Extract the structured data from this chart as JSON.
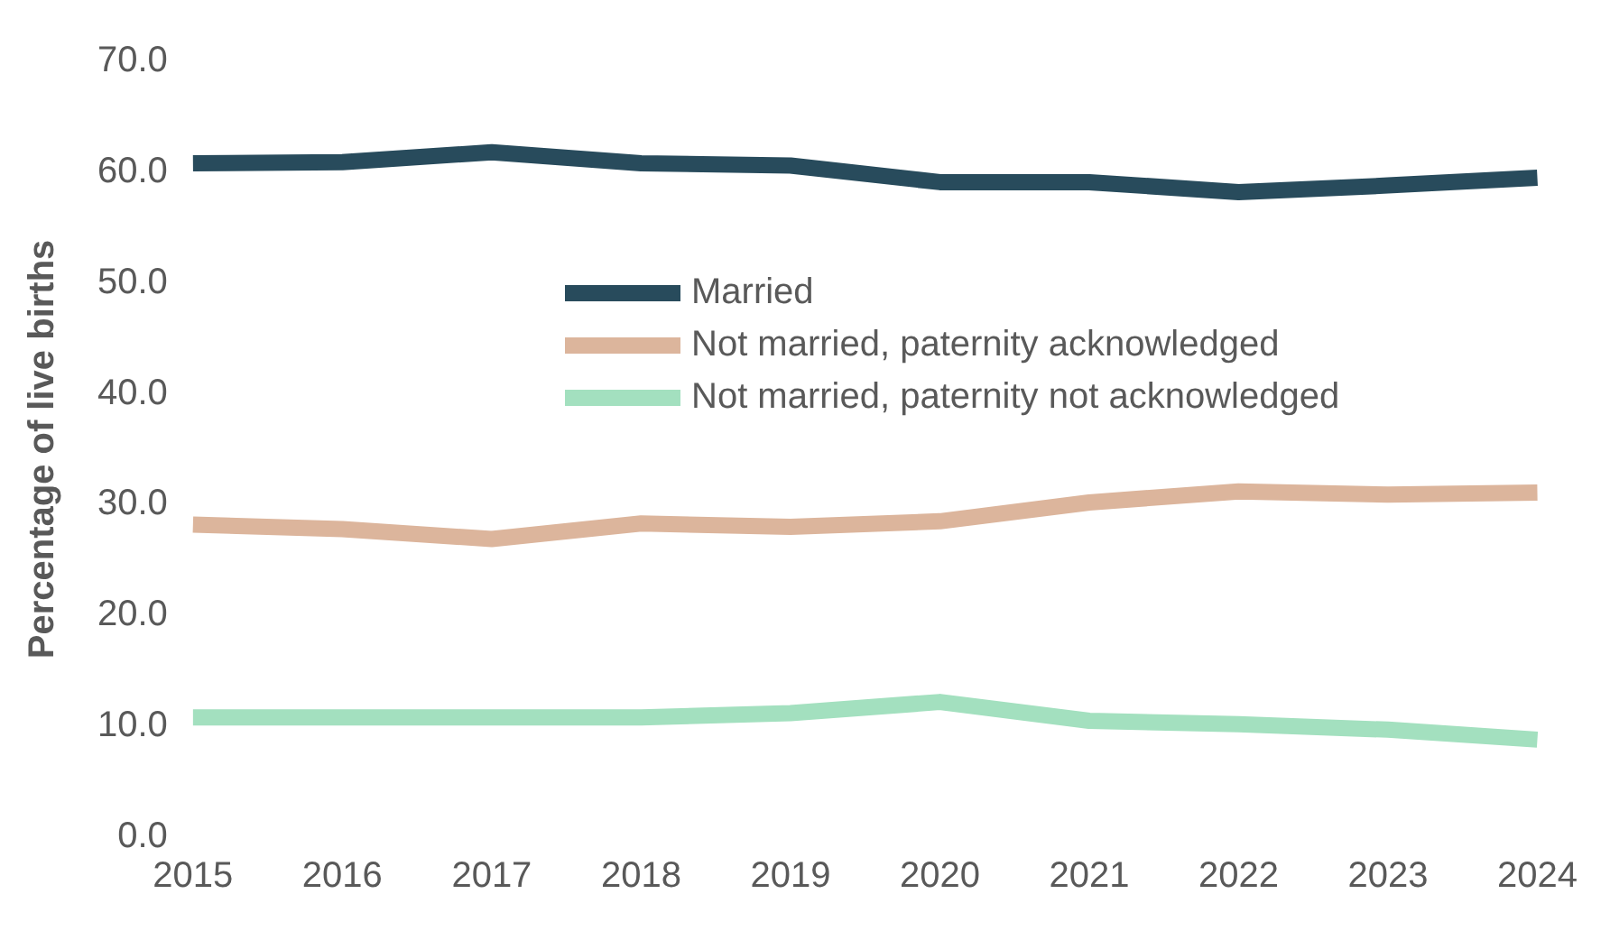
{
  "chart_data": {
    "type": "line",
    "ylabel": "Percentage of live births",
    "categories": [
      "2015",
      "2016",
      "2017",
      "2018",
      "2019",
      "2020",
      "2021",
      "2022",
      "2023",
      "2024"
    ],
    "series": [
      {
        "name": "Married",
        "color": "#284b5c",
        "values": [
          60.8,
          60.9,
          61.8,
          60.8,
          60.6,
          59.1,
          59.1,
          58.2,
          58.8,
          59.5
        ]
      },
      {
        "name": "Not married, paternity acknowledged",
        "color": "#dcb59c",
        "values": [
          28.2,
          27.8,
          26.9,
          28.3,
          28.0,
          28.5,
          30.2,
          31.2,
          30.9,
          31.1
        ]
      },
      {
        "name": "Not married, paternity not acknowledged",
        "color": "#a3e0bf",
        "values": [
          10.8,
          10.8,
          10.8,
          10.8,
          11.2,
          12.2,
          10.5,
          10.2,
          9.7,
          8.8
        ]
      }
    ],
    "ylim": [
      0,
      70
    ],
    "yticks": [
      {
        "value": 0,
        "label": "0.0"
      },
      {
        "value": 10,
        "label": "10.0"
      },
      {
        "value": 20,
        "label": "20.0"
      },
      {
        "value": 30,
        "label": "30.0"
      },
      {
        "value": 40,
        "label": "40.0"
      },
      {
        "value": 50,
        "label": "50.0"
      },
      {
        "value": 60,
        "label": "60.0"
      },
      {
        "value": 70,
        "label": "70.0"
      }
    ],
    "grid": false,
    "legend": "center",
    "marker": "none",
    "line_style": "solid"
  }
}
